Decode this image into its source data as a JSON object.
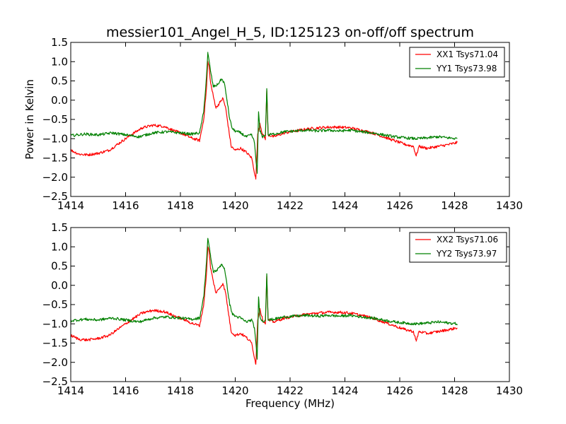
{
  "title": "messier101_Angel_H_5, ID:125123 on-off/off spectrum",
  "colors": {
    "xx": "#ff0000",
    "yy": "#008000"
  },
  "chart_data": [
    {
      "type": "line",
      "title": "messier101_Angel_H_5, ID:125123 on-off/off spectrum",
      "xlabel": "",
      "ylabel": "Power in Kelvin",
      "xlim": [
        1414,
        1430
      ],
      "ylim": [
        -2.5,
        1.5
      ],
      "xticks": [
        1414,
        1416,
        1418,
        1420,
        1422,
        1424,
        1426,
        1428,
        1430
      ],
      "xtick_labels": [
        "1414",
        "1416",
        "1418",
        "1420",
        "1422",
        "1424",
        "1426",
        "1428",
        "1430"
      ],
      "yticks": [
        -2.5,
        -2.0,
        -1.5,
        -1.0,
        -0.5,
        0.0,
        0.5,
        1.0,
        1.5
      ],
      "ytick_labels": [
        "−2.5",
        "−2.0",
        "−1.5",
        "−1.0",
        "−0.5",
        "0.0",
        "0.5",
        "1.0",
        "1.5"
      ],
      "grid": false,
      "legend_position": "top-right",
      "series": [
        {
          "name": "XX1 Tsys71.04",
          "color": "#ff0000",
          "x": [
            1414.0,
            1414.3,
            1414.6,
            1415.0,
            1415.4,
            1415.8,
            1416.2,
            1416.6,
            1417.0,
            1417.4,
            1417.8,
            1418.1,
            1418.4,
            1418.7,
            1418.85,
            1418.95,
            1419.0,
            1419.05,
            1419.1,
            1419.2,
            1419.3,
            1419.45,
            1419.55,
            1419.65,
            1419.75,
            1419.85,
            1420.0,
            1420.2,
            1420.4,
            1420.6,
            1420.75,
            1420.82,
            1420.9,
            1421.0,
            1421.1,
            1421.15,
            1421.2,
            1421.4,
            1421.8,
            1422.2,
            1422.6,
            1423.0,
            1423.4,
            1423.8,
            1424.2,
            1424.6,
            1425.0,
            1425.4,
            1425.8,
            1426.2,
            1426.5,
            1426.6,
            1426.7,
            1427.0,
            1427.4,
            1427.8,
            1428.1
          ],
          "y": [
            -1.3,
            -1.4,
            -1.42,
            -1.38,
            -1.3,
            -1.1,
            -0.9,
            -0.72,
            -0.65,
            -0.68,
            -0.8,
            -0.88,
            -0.98,
            -1.05,
            -0.5,
            0.3,
            1.0,
            0.85,
            0.45,
            0.1,
            -0.2,
            -0.05,
            0.05,
            -0.2,
            -0.7,
            -1.2,
            -1.3,
            -1.25,
            -1.35,
            -1.5,
            -2.05,
            -0.9,
            -0.6,
            -0.9,
            -1.0,
            0.25,
            -0.9,
            -0.95,
            -0.85,
            -0.8,
            -0.75,
            -0.72,
            -0.7,
            -0.7,
            -0.72,
            -0.78,
            -0.85,
            -0.95,
            -1.05,
            -1.15,
            -1.2,
            -1.45,
            -1.2,
            -1.25,
            -1.2,
            -1.15,
            -1.1
          ]
        },
        {
          "name": "YY1 Tsys73.98",
          "color": "#008000",
          "x": [
            1414.0,
            1414.5,
            1415.0,
            1415.5,
            1416.0,
            1416.5,
            1417.0,
            1417.5,
            1418.0,
            1418.4,
            1418.7,
            1418.85,
            1418.95,
            1419.0,
            1419.05,
            1419.1,
            1419.2,
            1419.35,
            1419.5,
            1419.6,
            1419.7,
            1419.8,
            1419.9,
            1420.0,
            1420.2,
            1420.4,
            1420.6,
            1420.7,
            1420.8,
            1420.85,
            1420.9,
            1421.0,
            1421.1,
            1421.15,
            1421.2,
            1421.4,
            1421.8,
            1422.2,
            1422.6,
            1423.0,
            1423.4,
            1423.8,
            1424.2,
            1424.6,
            1425.0,
            1425.4,
            1425.8,
            1426.2,
            1426.6,
            1427.0,
            1427.4,
            1427.8,
            1428.1
          ],
          "y": [
            -0.92,
            -0.88,
            -0.9,
            -0.85,
            -0.9,
            -0.95,
            -0.85,
            -0.82,
            -0.85,
            -0.88,
            -0.85,
            -0.3,
            0.6,
            1.22,
            1.0,
            0.75,
            0.35,
            0.4,
            0.55,
            0.45,
            0.0,
            -0.5,
            -0.75,
            -0.8,
            -0.85,
            -0.95,
            -0.9,
            -1.1,
            -1.9,
            -0.3,
            -0.8,
            -0.95,
            -0.9,
            0.3,
            -0.9,
            -0.88,
            -0.82,
            -0.8,
            -0.78,
            -0.8,
            -0.78,
            -0.8,
            -0.78,
            -0.82,
            -0.85,
            -0.9,
            -0.95,
            -0.98,
            -1.0,
            -0.98,
            -0.95,
            -0.98,
            -1.0
          ]
        }
      ]
    },
    {
      "type": "line",
      "title": "",
      "xlabel": "Frequency (MHz)",
      "ylabel": "",
      "xlim": [
        1414,
        1430
      ],
      "ylim": [
        -2.5,
        1.5
      ],
      "xticks": [
        1414,
        1416,
        1418,
        1420,
        1422,
        1424,
        1426,
        1428,
        1430
      ],
      "xtick_labels": [
        "1414",
        "1416",
        "1418",
        "1420",
        "1422",
        "1424",
        "1426",
        "1428",
        "1430"
      ],
      "yticks": [
        -2.5,
        -2.0,
        -1.5,
        -1.0,
        -0.5,
        0.0,
        0.5,
        1.0,
        1.5
      ],
      "ytick_labels": [
        "−2.5",
        "−2.0",
        "−1.5",
        "−1.0",
        "−0.5",
        "0.0",
        "0.5",
        "1.0",
        "1.5"
      ],
      "grid": false,
      "legend_position": "top-right",
      "series": [
        {
          "name": "XX2 Tsys71.06",
          "color": "#ff0000",
          "x": [
            1414.0,
            1414.3,
            1414.6,
            1415.0,
            1415.4,
            1415.8,
            1416.2,
            1416.6,
            1417.0,
            1417.4,
            1417.8,
            1418.1,
            1418.4,
            1418.7,
            1418.85,
            1418.95,
            1419.0,
            1419.05,
            1419.1,
            1419.2,
            1419.3,
            1419.45,
            1419.55,
            1419.65,
            1419.75,
            1419.85,
            1420.0,
            1420.2,
            1420.4,
            1420.6,
            1420.75,
            1420.82,
            1420.9,
            1421.0,
            1421.1,
            1421.15,
            1421.2,
            1421.4,
            1421.8,
            1422.2,
            1422.6,
            1423.0,
            1423.4,
            1423.8,
            1424.2,
            1424.6,
            1425.0,
            1425.4,
            1425.8,
            1426.2,
            1426.5,
            1426.6,
            1426.7,
            1427.0,
            1427.4,
            1427.8,
            1428.1
          ],
          "y": [
            -1.3,
            -1.4,
            -1.42,
            -1.38,
            -1.3,
            -1.1,
            -0.9,
            -0.72,
            -0.65,
            -0.68,
            -0.8,
            -0.88,
            -0.98,
            -1.05,
            -0.5,
            0.3,
            1.0,
            0.85,
            0.45,
            0.1,
            -0.2,
            -0.05,
            0.05,
            -0.2,
            -0.7,
            -1.2,
            -1.3,
            -1.25,
            -1.35,
            -1.5,
            -2.05,
            -0.9,
            -0.6,
            -0.9,
            -1.0,
            0.25,
            -0.9,
            -0.95,
            -0.85,
            -0.8,
            -0.75,
            -0.72,
            -0.7,
            -0.7,
            -0.72,
            -0.78,
            -0.85,
            -0.95,
            -1.05,
            -1.15,
            -1.2,
            -1.45,
            -1.2,
            -1.25,
            -1.2,
            -1.15,
            -1.1
          ]
        },
        {
          "name": "YY2 Tsys73.97",
          "color": "#008000",
          "x": [
            1414.0,
            1414.5,
            1415.0,
            1415.5,
            1416.0,
            1416.5,
            1417.0,
            1417.5,
            1418.0,
            1418.4,
            1418.7,
            1418.85,
            1418.95,
            1419.0,
            1419.05,
            1419.1,
            1419.2,
            1419.35,
            1419.5,
            1419.6,
            1419.7,
            1419.8,
            1419.9,
            1420.0,
            1420.2,
            1420.4,
            1420.6,
            1420.7,
            1420.8,
            1420.85,
            1420.9,
            1421.0,
            1421.1,
            1421.15,
            1421.2,
            1421.4,
            1421.8,
            1422.2,
            1422.6,
            1423.0,
            1423.4,
            1423.8,
            1424.2,
            1424.6,
            1425.0,
            1425.4,
            1425.8,
            1426.2,
            1426.6,
            1427.0,
            1427.4,
            1427.8,
            1428.1
          ],
          "y": [
            -0.92,
            -0.88,
            -0.9,
            -0.85,
            -0.9,
            -0.95,
            -0.85,
            -0.82,
            -0.85,
            -0.88,
            -0.85,
            -0.3,
            0.6,
            1.22,
            1.0,
            0.75,
            0.35,
            0.4,
            0.55,
            0.45,
            0.0,
            -0.5,
            -0.75,
            -0.8,
            -0.85,
            -0.95,
            -0.9,
            -1.1,
            -1.9,
            -0.3,
            -0.8,
            -0.95,
            -0.9,
            0.3,
            -0.9,
            -0.88,
            -0.82,
            -0.8,
            -0.78,
            -0.8,
            -0.78,
            -0.8,
            -0.78,
            -0.82,
            -0.85,
            -0.9,
            -0.95,
            -0.98,
            -1.0,
            -0.98,
            -0.95,
            -0.98,
            -1.0
          ]
        }
      ]
    }
  ]
}
